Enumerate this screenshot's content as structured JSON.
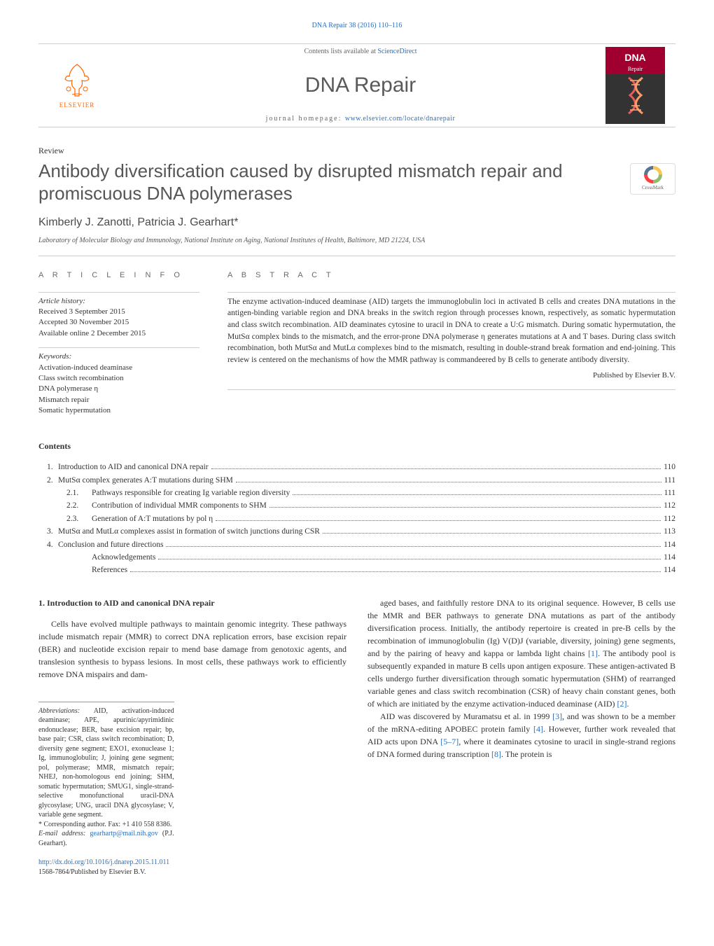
{
  "colors": {
    "link": "#2a6ebb",
    "text": "#333333",
    "heading_gray": "#565656",
    "elsevier_orange": "#ff6600",
    "cover_red": "#a00030",
    "border": "#cccccc"
  },
  "typography": {
    "body_family": "Georgia, 'Times New Roman', serif",
    "heading_family": "Arial, sans-serif",
    "body_size_pt": 9,
    "title_size_pt": 19,
    "journal_name_size_pt": 22
  },
  "citation": "DNA Repair 38 (2016) 110–116",
  "masthead": {
    "publisher_name": "ELSEVIER",
    "contents_prefix": "Contents lists available at ",
    "contents_link": "ScienceDirect",
    "journal_name": "DNA Repair",
    "homepage_prefix": "journal homepage: ",
    "homepage_url": "www.elsevier.com/locate/dnarepair",
    "cover": {
      "title": "DNA",
      "subtitle": "Repair"
    }
  },
  "article": {
    "type": "Review",
    "title": "Antibody diversification caused by disrupted mismatch repair and promiscuous DNA polymerases",
    "crossmark_label": "CrossMark",
    "authors": "Kimberly J. Zanotti, Patricia J. Gearhart*",
    "affiliation": "Laboratory of Molecular Biology and Immunology, National Institute on Aging, National Institutes of Health, Baltimore, MD 21224, USA"
  },
  "article_info": {
    "heading": "A R T I C L E   I N F O",
    "history_label": "Article history:",
    "history": [
      "Received 3 September 2015",
      "Accepted 30 November 2015",
      "Available online 2 December 2015"
    ],
    "keywords_label": "Keywords:",
    "keywords": [
      "Activation-induced deaminase",
      "Class switch recombination",
      "DNA polymerase η",
      "Mismatch repair",
      "Somatic hypermutation"
    ]
  },
  "abstract": {
    "heading": "A B S T R A C T",
    "text": "The enzyme activation-induced deaminase (AID) targets the immunoglobulin loci in activated B cells and creates DNA mutations in the antigen-binding variable region and DNA breaks in the switch region through processes known, respectively, as somatic hypermutation and class switch recombination. AID deaminates cytosine to uracil in DNA to create a U:G mismatch. During somatic hypermutation, the MutSα complex binds to the mismatch, and the error-prone DNA polymerase η generates mutations at A and T bases. During class switch recombination, both MutSα and MutLα complexes bind to the mismatch, resulting in double-strand break formation and end-joining. This review is centered on the mechanisms of how the MMR pathway is commandeered by B cells to generate antibody diversity.",
    "published_by": "Published by Elsevier B.V."
  },
  "contents": {
    "heading": "Contents",
    "items": [
      {
        "num": "1.",
        "text": "Introduction to AID and canonical DNA repair",
        "page": "110",
        "level": 0
      },
      {
        "num": "2.",
        "text": "MutSα complex generates A:T mutations during SHM",
        "page": "111",
        "level": 0
      },
      {
        "num": "2.1.",
        "text": "Pathways responsible for creating Ig variable region diversity",
        "page": "111",
        "level": 1
      },
      {
        "num": "2.2.",
        "text": "Contribution of individual MMR components to SHM",
        "page": "112",
        "level": 1
      },
      {
        "num": "2.3.",
        "text": "Generation of A:T mutations by pol η",
        "page": "112",
        "level": 1
      },
      {
        "num": "3.",
        "text": "MutSα and MutLα complexes assist in formation of switch junctions during CSR",
        "page": "113",
        "level": 0
      },
      {
        "num": "4.",
        "text": "Conclusion and future directions",
        "page": "114",
        "level": 0
      },
      {
        "num": "",
        "text": "Acknowledgements",
        "page": "114",
        "level": 1
      },
      {
        "num": "",
        "text": "References",
        "page": "114",
        "level": 1
      }
    ]
  },
  "body": {
    "section1_heading": "1. Introduction to AID and canonical DNA repair",
    "col1_p1": "Cells have evolved multiple pathways to maintain genomic integrity. These pathways include mismatch repair (MMR) to correct DNA replication errors, base excision repair (BER) and nucleotide excision repair to mend base damage from genotoxic agents, and translesion synthesis to bypass lesions. In most cells, these pathways work to efficiently remove DNA mispairs and dam-",
    "col2_p1_a": "aged bases, and faithfully restore DNA to its original sequence. However, B cells use the MMR and BER pathways to generate DNA mutations as part of the antibody diversification process. Initially, the antibody repertoire is created in pre-B cells by the recombination of immunoglobulin (Ig) V(D)J (variable, diversity, joining) gene segments, and by the pairing of heavy and kappa or lambda light chains ",
    "col2_ref1": "[1]",
    "col2_p1_b": ". The antibody pool is subsequently expanded in mature B cells upon antigen exposure. These antigen-activated B cells undergo further diversification through somatic hypermutation (SHM) of rearranged variable genes and class switch recombination (CSR) of heavy chain constant genes, both of which are initiated by the enzyme activation-induced deaminase (AID) ",
    "col2_ref2": "[2]",
    "col2_p1_c": ".",
    "col2_p2_a": "AID was discovered by Muramatsu et al. in 1999 ",
    "col2_ref3": "[3]",
    "col2_p2_b": ", and was shown to be a member of the mRNA-editing APOBEC protein family ",
    "col2_ref4": "[4]",
    "col2_p2_c": ". However, further work revealed that AID acts upon DNA ",
    "col2_ref5": "[5–7]",
    "col2_p2_d": ", where it deaminates cytosine to uracil in single-strand regions of DNA formed during transcription ",
    "col2_ref6": "[8]",
    "col2_p2_e": ". The protein is"
  },
  "footnotes": {
    "abbrev_label": "Abbreviations:",
    "abbrev_text": " AID, activation-induced deaminase; APE, apurinic/apyrimidinic endonuclease; BER, base excision repair; bp, base pair; CSR, class switch recombination; D, diversity gene segment; EXO1, exonuclease 1; Ig, immunoglobulin; J, joining gene segment; pol, polymerase; MMR, mismatch repair; NHEJ, non-homologous end joining; SHM, somatic hypermutation; SMUG1, single-strand-selective monofunctional uracil-DNA glycosylase; UNG, uracil DNA glycosylase; V, variable gene segment.",
    "corr_author": "* Corresponding author. Fax: +1 410 558 8386.",
    "email_label": "E-mail address: ",
    "email": "gearhartp@mail.nih.gov",
    "email_suffix": " (P.J. Gearhart)."
  },
  "footer": {
    "doi": "http://dx.doi.org/10.1016/j.dnarep.2015.11.011",
    "issn_line": "1568-7864/Published by Elsevier B.V."
  }
}
